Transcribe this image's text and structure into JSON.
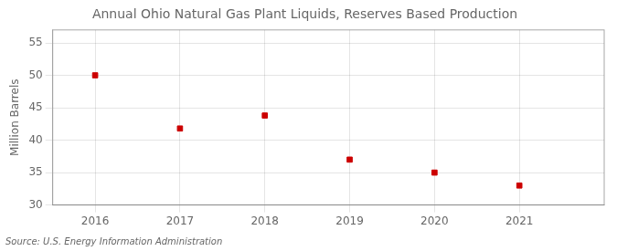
{
  "chart_data": {
    "type": "scatter",
    "title": "Annual Ohio Natural Gas Plant Liquids, Reserves Based Production",
    "ylabel": "Million Barrels",
    "annotation": "Source: U.S. Energy Information Administration",
    "x": [
      2016,
      2017,
      2018,
      2019,
      2020,
      2021
    ],
    "values": [
      50.0,
      41.8,
      43.8,
      37.0,
      35.0,
      33.0
    ],
    "color": "#cc0000",
    "marker": "square",
    "xlim": [
      2015.5,
      2022.0
    ],
    "ylim": [
      30,
      57
    ],
    "xticks": [
      2016,
      2017,
      2018,
      2019,
      2020,
      2021
    ],
    "yticks": [
      30,
      35,
      40,
      45,
      50,
      55
    ],
    "grid": true
  }
}
